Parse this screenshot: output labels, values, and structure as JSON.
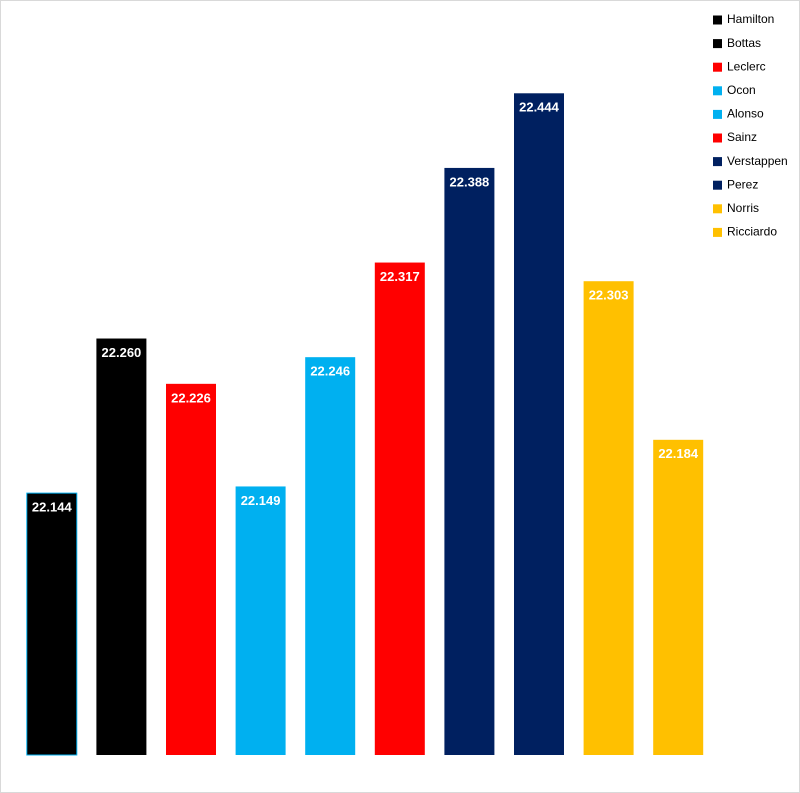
{
  "chart_data": {
    "type": "bar",
    "series": [
      {
        "name": "Hamilton",
        "color": "#000000",
        "values": [
          22.144
        ]
      },
      {
        "name": "Bottas",
        "color": "#000000",
        "values": [
          22.26
        ]
      },
      {
        "name": "Leclerc",
        "color": "#ff0000",
        "values": [
          22.226
        ]
      },
      {
        "name": "Ocon",
        "color": "#00b0f0",
        "values": [
          22.149
        ]
      },
      {
        "name": "Alonso",
        "color": "#00b0f0",
        "values": [
          22.246
        ]
      },
      {
        "name": "Sainz",
        "color": "#ff0000",
        "values": [
          22.317
        ]
      },
      {
        "name": "Verstappen",
        "color": "#002060",
        "values": [
          22.388
        ]
      },
      {
        "name": "Perez",
        "color": "#002060",
        "values": [
          22.444
        ]
      },
      {
        "name": "Norris",
        "color": "#ffc000",
        "values": [
          22.303
        ]
      },
      {
        "name": "Ricciardo",
        "color": "#ffc000",
        "values": [
          22.184
        ]
      }
    ],
    "value_labels": [
      "22.144",
      "22.260",
      "22.226",
      "22.149",
      "22.246",
      "22.317",
      "22.388",
      "22.444",
      "22.303",
      "22.184"
    ],
    "ylim": [
      21.9475,
      22.514
    ],
    "legend": "top-right"
  }
}
